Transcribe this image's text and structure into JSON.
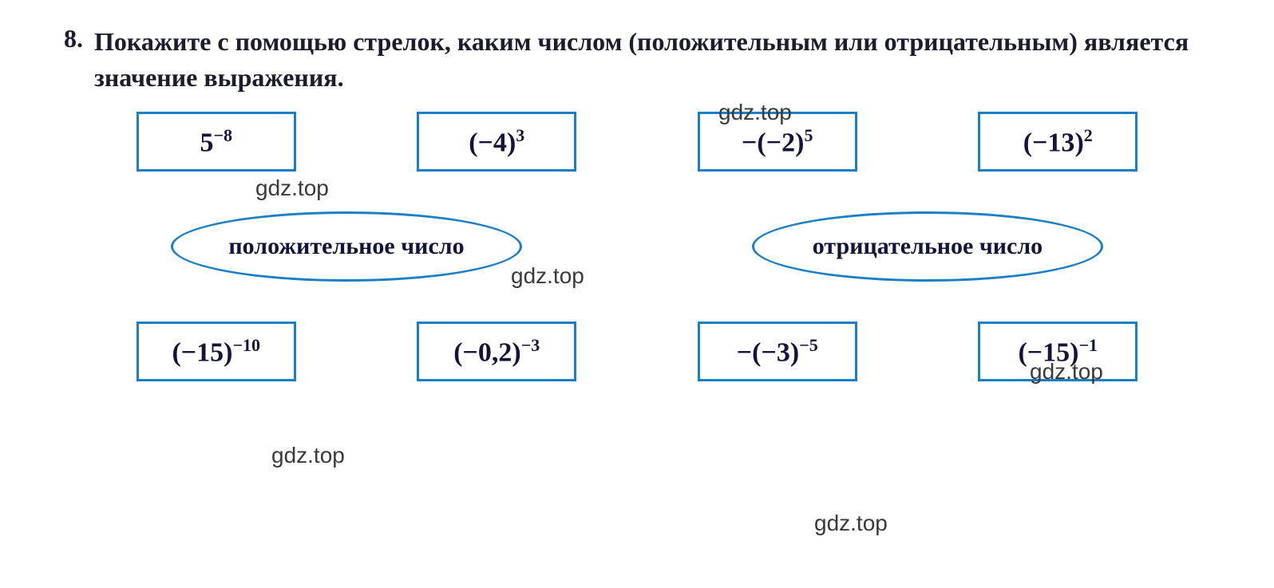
{
  "problem": {
    "number": "8.",
    "text": "Покажите с помощью стрелок, каким числом (положительным или отрицательным) является значение выражения."
  },
  "top_row": [
    {
      "base": "5",
      "exp": "−8",
      "prefix": "",
      "paren": false
    },
    {
      "base": "−4",
      "exp": "3",
      "prefix": "",
      "paren": true
    },
    {
      "base": "−2",
      "exp": "5",
      "prefix": "−",
      "paren": true
    },
    {
      "base": "−13",
      "exp": "2",
      "prefix": "",
      "paren": true
    }
  ],
  "labels": {
    "positive": "положительное число",
    "negative": "отрицательное число"
  },
  "bottom_row": [
    {
      "base": "−15",
      "exp": "−10",
      "prefix": "",
      "paren": true
    },
    {
      "base": "−0,2",
      "exp": "−3",
      "prefix": "",
      "paren": true
    },
    {
      "base": "−3",
      "exp": "−5",
      "prefix": "−",
      "paren": true
    },
    {
      "base": "−15",
      "exp": "−1",
      "prefix": "",
      "paren": true
    }
  ],
  "watermark": "gdz.top",
  "colors": {
    "border": "#1a7fc4",
    "text": "#12143a",
    "heading": "#1b1c2e",
    "background": "#ffffff"
  }
}
